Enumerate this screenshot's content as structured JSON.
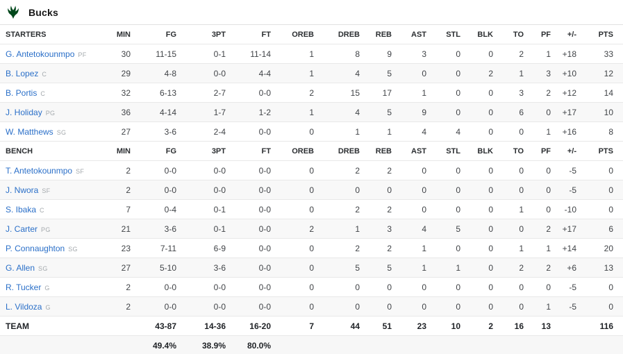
{
  "team": {
    "name": "Bucks",
    "logo_color": "#00471B"
  },
  "labels": {
    "starters": "STARTERS",
    "bench": "BENCH",
    "team_total": "TEAM"
  },
  "columns": [
    "MIN",
    "FG",
    "3PT",
    "FT",
    "OREB",
    "DREB",
    "REB",
    "AST",
    "STL",
    "BLK",
    "TO",
    "PF",
    "+/-",
    "PTS"
  ],
  "starters": [
    {
      "name": "G. Antetokounmpo",
      "pos": "PF",
      "stats": [
        "30",
        "11-15",
        "0-1",
        "11-14",
        "1",
        "8",
        "9",
        "3",
        "0",
        "0",
        "2",
        "1",
        "+18",
        "33"
      ]
    },
    {
      "name": "B. Lopez",
      "pos": "C",
      "stats": [
        "29",
        "4-8",
        "0-0",
        "4-4",
        "1",
        "4",
        "5",
        "0",
        "0",
        "2",
        "1",
        "3",
        "+10",
        "12"
      ]
    },
    {
      "name": "B. Portis",
      "pos": "C",
      "stats": [
        "32",
        "6-13",
        "2-7",
        "0-0",
        "2",
        "15",
        "17",
        "1",
        "0",
        "0",
        "3",
        "2",
        "+12",
        "14"
      ]
    },
    {
      "name": "J. Holiday",
      "pos": "PG",
      "stats": [
        "36",
        "4-14",
        "1-7",
        "1-2",
        "1",
        "4",
        "5",
        "9",
        "0",
        "0",
        "6",
        "0",
        "+17",
        "10"
      ]
    },
    {
      "name": "W. Matthews",
      "pos": "SG",
      "stats": [
        "27",
        "3-6",
        "2-4",
        "0-0",
        "0",
        "1",
        "1",
        "4",
        "4",
        "0",
        "0",
        "1",
        "+16",
        "8"
      ]
    }
  ],
  "bench": [
    {
      "name": "T. Antetokounmpo",
      "pos": "SF",
      "stats": [
        "2",
        "0-0",
        "0-0",
        "0-0",
        "0",
        "2",
        "2",
        "0",
        "0",
        "0",
        "0",
        "0",
        "-5",
        "0"
      ]
    },
    {
      "name": "J. Nwora",
      "pos": "SF",
      "stats": [
        "2",
        "0-0",
        "0-0",
        "0-0",
        "0",
        "0",
        "0",
        "0",
        "0",
        "0",
        "0",
        "0",
        "-5",
        "0"
      ]
    },
    {
      "name": "S. Ibaka",
      "pos": "C",
      "stats": [
        "7",
        "0-4",
        "0-1",
        "0-0",
        "0",
        "2",
        "2",
        "0",
        "0",
        "0",
        "1",
        "0",
        "-10",
        "0"
      ]
    },
    {
      "name": "J. Carter",
      "pos": "PG",
      "stats": [
        "21",
        "3-6",
        "0-1",
        "0-0",
        "2",
        "1",
        "3",
        "4",
        "5",
        "0",
        "0",
        "2",
        "+17",
        "6"
      ]
    },
    {
      "name": "P. Connaughton",
      "pos": "SG",
      "stats": [
        "23",
        "7-11",
        "6-9",
        "0-0",
        "0",
        "2",
        "2",
        "1",
        "0",
        "0",
        "1",
        "1",
        "+14",
        "20"
      ]
    },
    {
      "name": "G. Allen",
      "pos": "SG",
      "stats": [
        "27",
        "5-10",
        "3-6",
        "0-0",
        "0",
        "5",
        "5",
        "1",
        "1",
        "0",
        "2",
        "2",
        "+6",
        "13"
      ]
    },
    {
      "name": "R. Tucker",
      "pos": "G",
      "stats": [
        "2",
        "0-0",
        "0-0",
        "0-0",
        "0",
        "0",
        "0",
        "0",
        "0",
        "0",
        "0",
        "0",
        "-5",
        "0"
      ]
    },
    {
      "name": "L. Vildoza",
      "pos": "G",
      "stats": [
        "2",
        "0-0",
        "0-0",
        "0-0",
        "0",
        "0",
        "0",
        "0",
        "0",
        "0",
        "0",
        "1",
        "-5",
        "0"
      ]
    }
  ],
  "totals": [
    "",
    "43-87",
    "14-36",
    "16-20",
    "7",
    "44",
    "51",
    "23",
    "10",
    "2",
    "16",
    "13",
    "",
    "116"
  ],
  "percentages": [
    "",
    "49.4%",
    "38.9%",
    "80.0%",
    "",
    "",
    "",
    "",
    "",
    "",
    "",
    "",
    "",
    ""
  ]
}
